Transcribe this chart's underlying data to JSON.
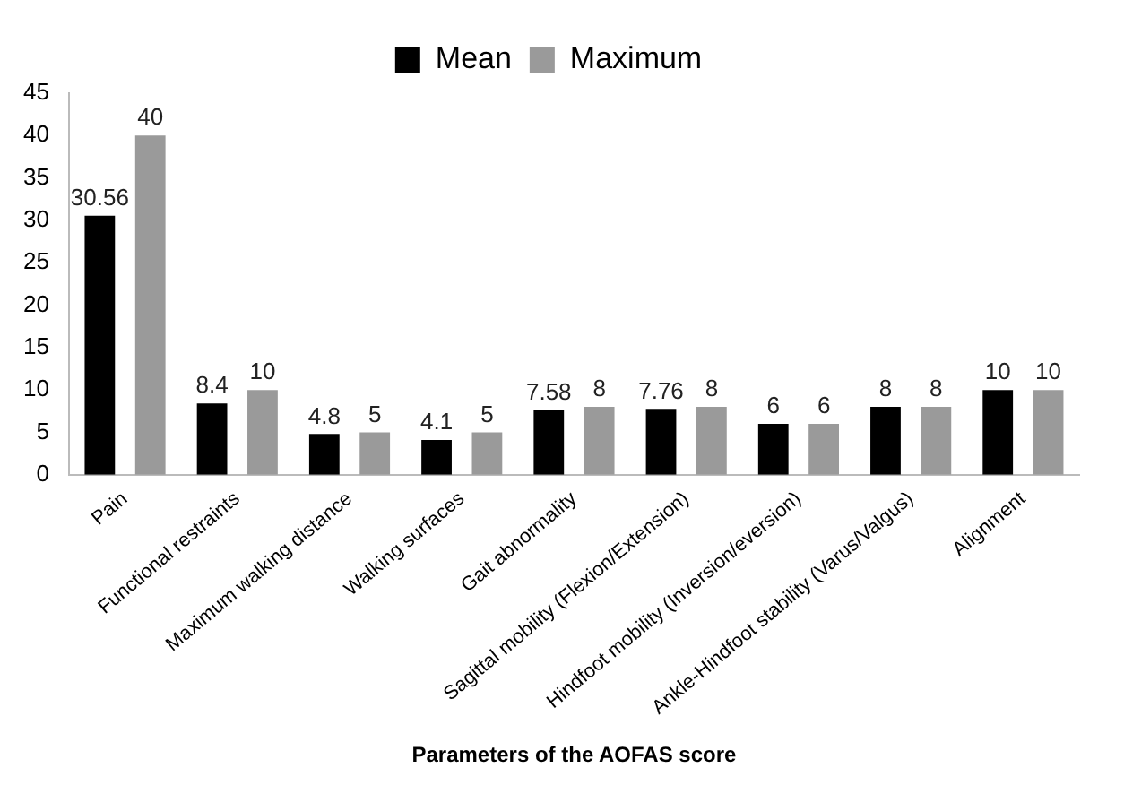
{
  "chart_data": {
    "type": "bar",
    "xlabel": "Parameters of the AOFAS score",
    "categories": [
      "Pain",
      "Functional restraints",
      "Maximum walking distance",
      "Walking surfaces",
      "Gait abnormality",
      "Sagittal mobility (Flexion/Extension)",
      "Hindfoot mobility (Inversion/eversion)",
      "Ankle-Hindfoot stability (Varus/Valgus)",
      "Alignment"
    ],
    "series": [
      {
        "name": "Mean",
        "color": "#000000",
        "values": [
          30.56,
          8.4,
          4.8,
          4.1,
          7.58,
          7.76,
          6,
          8,
          10
        ]
      },
      {
        "name": "Maximum",
        "color": "#9a9a9a",
        "values": [
          40,
          10,
          5,
          5,
          8,
          8,
          6,
          8,
          10
        ]
      }
    ],
    "ylim": [
      0,
      45
    ],
    "yticks": [
      0,
      5,
      10,
      15,
      20,
      25,
      30,
      35,
      40,
      45
    ],
    "grid": false,
    "legend": "top",
    "data_labels": true
  }
}
